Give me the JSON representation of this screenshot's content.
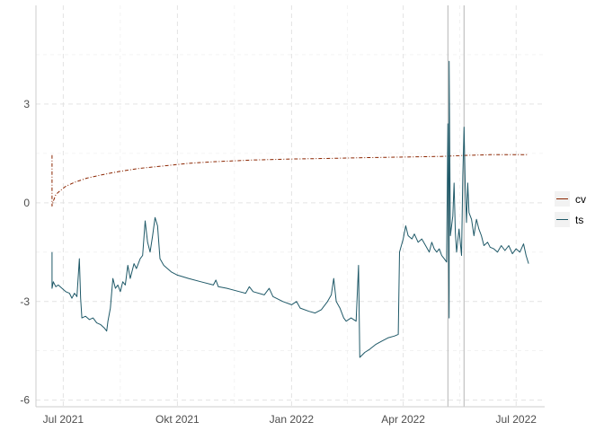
{
  "chart_data": {
    "type": "line",
    "title": "",
    "xlabel": "",
    "ylabel": "",
    "x_range": [
      "2021-06-09",
      "2022-07-24"
    ],
    "y_range": [
      -6.2,
      6.0
    ],
    "x_ticks": [
      {
        "date": "2021-07-01",
        "label": "Jul 2021"
      },
      {
        "date": "2021-10-01",
        "label": "Okt 2021"
      },
      {
        "date": "2022-01-01",
        "label": "Jan 2022"
      },
      {
        "date": "2022-04-01",
        "label": "Apr 2022"
      },
      {
        "date": "2022-07-01",
        "label": "Jul 2022"
      }
    ],
    "y_ticks": [
      {
        "value": 3,
        "label": "3"
      },
      {
        "value": 0,
        "label": "0"
      },
      {
        "value": -3,
        "label": "-3"
      },
      {
        "value": -6,
        "label": "-6"
      }
    ],
    "minor_y_ticks": [
      4.5,
      1.5,
      -1.5,
      -4.5
    ],
    "grid": true,
    "legend_position": "right",
    "vertical_lines": [
      "2022-05-07",
      "2022-05-20"
    ],
    "series": [
      {
        "name": "cv",
        "color": "#8B2500",
        "style": "dashed",
        "points": [
          [
            "2021-06-22",
            1.45
          ],
          [
            "2021-06-22",
            -0.1
          ],
          [
            "2021-06-23",
            0.05
          ],
          [
            "2021-06-25",
            0.25
          ],
          [
            "2021-06-28",
            0.35
          ],
          [
            "2021-07-03",
            0.5
          ],
          [
            "2021-07-10",
            0.62
          ],
          [
            "2021-07-20",
            0.75
          ],
          [
            "2021-08-01",
            0.85
          ],
          [
            "2021-08-15",
            0.95
          ],
          [
            "2021-09-01",
            1.05
          ],
          [
            "2021-09-20",
            1.12
          ],
          [
            "2021-10-10",
            1.2
          ],
          [
            "2021-11-01",
            1.25
          ],
          [
            "2021-12-01",
            1.3
          ],
          [
            "2022-01-01",
            1.33
          ],
          [
            "2022-02-01",
            1.35
          ],
          [
            "2022-03-01",
            1.37
          ],
          [
            "2022-04-01",
            1.39
          ],
          [
            "2022-05-01",
            1.41
          ],
          [
            "2022-05-08",
            1.42
          ],
          [
            "2022-05-20",
            1.44
          ],
          [
            "2022-06-10",
            1.46
          ],
          [
            "2022-07-01",
            1.46
          ],
          [
            "2022-07-11",
            1.46
          ]
        ]
      },
      {
        "name": "ts",
        "color": "#1F5968",
        "style": "solid",
        "points": [
          [
            "2021-06-22",
            -1.5
          ],
          [
            "2021-06-22",
            -2.6
          ],
          [
            "2021-06-23",
            -2.4
          ],
          [
            "2021-06-25",
            -2.55
          ],
          [
            "2021-06-27",
            -2.5
          ],
          [
            "2021-06-30",
            -2.6
          ],
          [
            "2021-07-03",
            -2.7
          ],
          [
            "2021-07-06",
            -2.75
          ],
          [
            "2021-07-08",
            -2.9
          ],
          [
            "2021-07-10",
            -2.75
          ],
          [
            "2021-07-12",
            -2.85
          ],
          [
            "2021-07-14",
            -1.7
          ],
          [
            "2021-07-15",
            -2.9
          ],
          [
            "2021-07-16",
            -3.5
          ],
          [
            "2021-07-19",
            -3.45
          ],
          [
            "2021-07-22",
            -3.55
          ],
          [
            "2021-07-25",
            -3.5
          ],
          [
            "2021-07-28",
            -3.65
          ],
          [
            "2021-07-31",
            -3.7
          ],
          [
            "2021-08-03",
            -3.8
          ],
          [
            "2021-08-05",
            -3.9
          ],
          [
            "2021-08-06",
            -3.6
          ],
          [
            "2021-08-08",
            -3.2
          ],
          [
            "2021-08-10",
            -2.3
          ],
          [
            "2021-08-12",
            -2.6
          ],
          [
            "2021-08-14",
            -2.5
          ],
          [
            "2021-08-16",
            -2.7
          ],
          [
            "2021-08-18",
            -2.4
          ],
          [
            "2021-08-20",
            -2.5
          ],
          [
            "2021-08-22",
            -1.9
          ],
          [
            "2021-08-24",
            -2.3
          ],
          [
            "2021-08-27",
            -1.85
          ],
          [
            "2021-08-29",
            -2.0
          ],
          [
            "2021-09-01",
            -1.7
          ],
          [
            "2021-09-03",
            -1.6
          ],
          [
            "2021-09-05",
            -0.55
          ],
          [
            "2021-09-07",
            -1.2
          ],
          [
            "2021-09-09",
            -1.5
          ],
          [
            "2021-09-11",
            -1.0
          ],
          [
            "2021-09-13",
            -0.45
          ],
          [
            "2021-09-15",
            -0.7
          ],
          [
            "2021-09-17",
            -1.7
          ],
          [
            "2021-09-20",
            -1.9
          ],
          [
            "2021-09-23",
            -2.0
          ],
          [
            "2021-09-26",
            -2.1
          ],
          [
            "2021-10-01",
            -2.2
          ],
          [
            "2021-10-10",
            -2.3
          ],
          [
            "2021-10-20",
            -2.4
          ],
          [
            "2021-10-30",
            -2.5
          ],
          [
            "2021-11-01",
            -2.35
          ],
          [
            "2021-11-03",
            -2.55
          ],
          [
            "2021-11-10",
            -2.6
          ],
          [
            "2021-11-20",
            -2.7
          ],
          [
            "2021-11-25",
            -2.75
          ],
          [
            "2021-11-28",
            -2.55
          ],
          [
            "2021-12-01",
            -2.7
          ],
          [
            "2021-12-10",
            -2.8
          ],
          [
            "2021-12-14",
            -2.6
          ],
          [
            "2021-12-17",
            -2.85
          ],
          [
            "2021-12-25",
            -3.0
          ],
          [
            "2022-01-01",
            -3.1
          ],
          [
            "2022-01-05",
            -3.0
          ],
          [
            "2022-01-08",
            -3.2
          ],
          [
            "2022-01-15",
            -3.3
          ],
          [
            "2022-01-20",
            -3.35
          ],
          [
            "2022-01-25",
            -3.25
          ],
          [
            "2022-01-30",
            -3.0
          ],
          [
            "2022-02-02",
            -2.8
          ],
          [
            "2022-02-04",
            -2.3
          ],
          [
            "2022-02-06",
            -3.0
          ],
          [
            "2022-02-09",
            -3.2
          ],
          [
            "2022-02-12",
            -3.5
          ],
          [
            "2022-02-14",
            -3.6
          ],
          [
            "2022-02-18",
            -3.5
          ],
          [
            "2022-02-22",
            -3.6
          ],
          [
            "2022-02-24",
            -1.9
          ],
          [
            "2022-02-25",
            -4.7
          ],
          [
            "2022-03-01",
            -4.55
          ],
          [
            "2022-03-05",
            -4.45
          ],
          [
            "2022-03-10",
            -4.3
          ],
          [
            "2022-03-15",
            -4.2
          ],
          [
            "2022-03-20",
            -4.1
          ],
          [
            "2022-03-25",
            -4.05
          ],
          [
            "2022-03-28",
            -4.0
          ],
          [
            "2022-03-29",
            -1.5
          ],
          [
            "2022-04-01",
            -1.1
          ],
          [
            "2022-04-03",
            -0.7
          ],
          [
            "2022-04-05",
            -1.0
          ],
          [
            "2022-04-08",
            -1.1
          ],
          [
            "2022-04-10",
            -0.95
          ],
          [
            "2022-04-13",
            -1.2
          ],
          [
            "2022-04-16",
            -1.1
          ],
          [
            "2022-04-19",
            -1.3
          ],
          [
            "2022-04-22",
            -1.5
          ],
          [
            "2022-04-24",
            -1.2
          ],
          [
            "2022-04-26",
            -1.4
          ],
          [
            "2022-04-28",
            -1.5
          ],
          [
            "2022-04-30",
            -1.4
          ],
          [
            "2022-05-02",
            -1.6
          ],
          [
            "2022-05-04",
            -1.7
          ],
          [
            "2022-05-06",
            -1.8
          ],
          [
            "2022-05-07",
            2.4
          ],
          [
            "2022-05-08",
            -3.5
          ],
          [
            "2022-05-08",
            4.3
          ],
          [
            "2022-05-09",
            -1.0
          ],
          [
            "2022-05-11",
            -0.4
          ],
          [
            "2022-05-12",
            0.6
          ],
          [
            "2022-05-13",
            -0.9
          ],
          [
            "2022-05-14",
            -1.5
          ],
          [
            "2022-05-16",
            -0.8
          ],
          [
            "2022-05-18",
            -1.6
          ],
          [
            "2022-05-19",
            0.8
          ],
          [
            "2022-05-20",
            2.3
          ],
          [
            "2022-05-21",
            0.5
          ],
          [
            "2022-05-22",
            -0.6
          ],
          [
            "2022-05-23",
            0.6
          ],
          [
            "2022-05-24",
            -0.3
          ],
          [
            "2022-05-26",
            -0.5
          ],
          [
            "2022-05-28",
            -1.0
          ],
          [
            "2022-05-30",
            -0.5
          ],
          [
            "2022-06-01",
            -0.8
          ],
          [
            "2022-06-03",
            -1.0
          ],
          [
            "2022-06-05",
            -1.3
          ],
          [
            "2022-06-08",
            -1.2
          ],
          [
            "2022-06-10",
            -1.35
          ],
          [
            "2022-06-13",
            -1.4
          ],
          [
            "2022-06-16",
            -1.5
          ],
          [
            "2022-06-19",
            -1.3
          ],
          [
            "2022-06-22",
            -1.45
          ],
          [
            "2022-06-25",
            -1.3
          ],
          [
            "2022-06-28",
            -1.55
          ],
          [
            "2022-07-01",
            -1.4
          ],
          [
            "2022-07-04",
            -1.5
          ],
          [
            "2022-07-07",
            -1.25
          ],
          [
            "2022-07-09",
            -1.6
          ],
          [
            "2022-07-11",
            -1.85
          ]
        ]
      }
    ]
  }
}
